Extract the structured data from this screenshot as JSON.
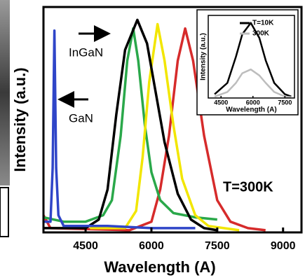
{
  "chart_data": [
    {
      "type": "line",
      "xlabel": "Wavelength (A)",
      "ylabel": "Intensity (a.u.)",
      "xlim": [
        3540,
        9420
      ],
      "ylim": [
        0,
        1.05
      ],
      "xticks": [
        4500,
        6000,
        7500,
        9000
      ],
      "annotations": [
        "InGaN",
        "GaN",
        "T=300K"
      ],
      "series": [
        {
          "color": "#d62b2b",
          "x": [
            3540,
            3700,
            5500,
            6000,
            6200,
            6400,
            6600,
            6770,
            6950,
            7200,
            7500,
            7800,
            8200,
            8600
          ],
          "values": [
            0.08,
            0.02,
            0.01,
            0.05,
            0.2,
            0.45,
            0.8,
            0.95,
            0.8,
            0.45,
            0.15,
            0.05,
            0.02,
            0.01
          ]
        },
        {
          "color": "#2aa84a",
          "x": [
            3540,
            4000,
            4500,
            4900,
            5100,
            5300,
            5450,
            5585,
            5700,
            5850,
            6000,
            6200,
            6500,
            7000,
            7500
          ],
          "values": [
            0.07,
            0.05,
            0.05,
            0.08,
            0.15,
            0.45,
            0.8,
            0.95,
            0.8,
            0.5,
            0.28,
            0.15,
            0.09,
            0.07,
            0.06
          ]
        },
        {
          "color": "#f2e600",
          "x": [
            4600,
            5400,
            5650,
            5800,
            5950,
            6140,
            6300,
            6500,
            6700,
            7000,
            7300,
            8000
          ],
          "values": [
            0.02,
            0.02,
            0.1,
            0.35,
            0.7,
            0.97,
            0.8,
            0.5,
            0.25,
            0.08,
            0.03,
            0.01
          ]
        },
        {
          "color": "#000000",
          "x": [
            3540,
            4500,
            4800,
            5000,
            5200,
            5400,
            5680,
            5900,
            6100,
            6300,
            6600,
            6900,
            7200,
            7500
          ],
          "values": [
            0.02,
            0.02,
            0.06,
            0.2,
            0.55,
            0.85,
            0.99,
            0.88,
            0.65,
            0.42,
            0.18,
            0.06,
            0.02,
            0.01
          ]
        },
        {
          "color": "#2f45c8",
          "x": [
            3540,
            3700,
            3750,
            3790,
            3830,
            3880,
            4000,
            5000,
            6000,
            7000
          ],
          "values": [
            0.05,
            0.05,
            0.3,
            0.94,
            0.3,
            0.08,
            0.03,
            0.03,
            0.02,
            0.02
          ]
        }
      ]
    },
    {
      "type": "line",
      "xlabel": "Wavelength (A)",
      "ylabel": "Intensity (a.u.)",
      "xlim": [
        3900,
        7950
      ],
      "ylim": [
        0,
        1.1
      ],
      "xticks": [
        4500,
        6000,
        7500
      ],
      "x": [
        4200,
        4800,
        5200,
        5500,
        5900,
        6300,
        6600,
        7000,
        7500,
        7800
      ],
      "series": [
        {
          "name": "T=10K",
          "color": "#000000",
          "values": [
            0.05,
            0.2,
            0.55,
            0.85,
            1.0,
            0.8,
            0.5,
            0.2,
            0.05,
            0.02
          ]
        },
        {
          "name": "300K",
          "color": "#bdbdbd",
          "values": [
            0.02,
            0.08,
            0.2,
            0.33,
            0.38,
            0.3,
            0.2,
            0.08,
            0.02,
            0.01
          ]
        }
      ]
    }
  ]
}
